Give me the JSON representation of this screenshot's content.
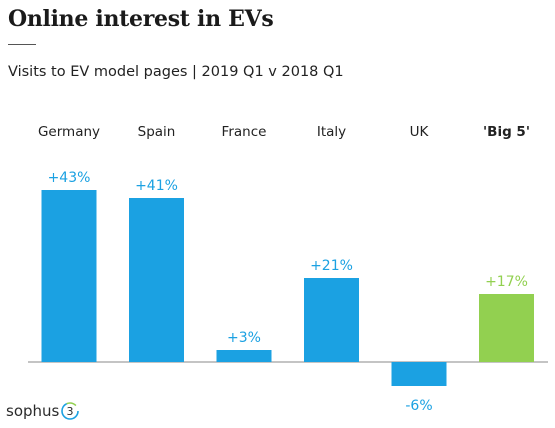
{
  "title": "Online interest in EVs",
  "subtitle": "Visits to EV model pages | 2019 Q1 v 2018 Q1",
  "logo": {
    "text": "sophus",
    "mark": "3"
  },
  "chart_data": {
    "type": "bar",
    "categories": [
      "Germany",
      "Spain",
      "France",
      "Italy",
      "UK",
      "'Big 5'"
    ],
    "values": [
      43,
      41,
      3,
      21,
      -6,
      17
    ],
    "value_labels": [
      "+43%",
      "+41%",
      "+3%",
      "+21%",
      "-6%",
      "+17%"
    ],
    "colors": [
      "#1ba1e2",
      "#1ba1e2",
      "#1ba1e2",
      "#1ba1e2",
      "#1ba1e2",
      "#92d050"
    ],
    "label_color": "#1ba1e2",
    "label_color_highlight": "#92d050",
    "category_bold": [
      false,
      false,
      false,
      false,
      false,
      true
    ],
    "ylim": [
      -6,
      43
    ],
    "grid": false
  }
}
